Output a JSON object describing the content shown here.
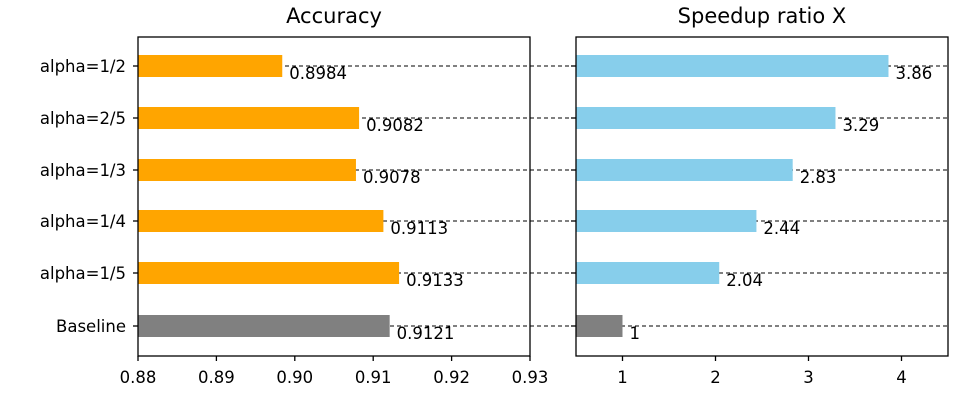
{
  "chart_data": [
    {
      "type": "bar",
      "orientation": "horizontal",
      "title": "Accuracy",
      "categories": [
        "alpha=1/2",
        "alpha=2/5",
        "alpha=1/3",
        "alpha=1/4",
        "alpha=1/5",
        "Baseline"
      ],
      "values": [
        0.8984,
        0.9082,
        0.9078,
        0.9113,
        0.9133,
        0.9121
      ],
      "value_labels": [
        "0.8984",
        "0.9082",
        "0.9078",
        "0.9113",
        "0.9133",
        "0.9121"
      ],
      "xlim": [
        0.88,
        0.93
      ],
      "xticks": [
        "0.88",
        "0.89",
        "0.90",
        "0.91",
        "0.92",
        "0.93"
      ],
      "colors": [
        "#ffa500",
        "#ffa500",
        "#ffa500",
        "#ffa500",
        "#ffa500",
        "#808080"
      ]
    },
    {
      "type": "bar",
      "orientation": "horizontal",
      "title": "Speedup ratio X",
      "categories": [
        "alpha=1/2",
        "alpha=2/5",
        "alpha=1/3",
        "alpha=1/4",
        "alpha=1/5",
        "Baseline"
      ],
      "values": [
        3.86,
        3.29,
        2.83,
        2.44,
        2.04,
        1
      ],
      "value_labels": [
        "3.86",
        "3.29",
        "2.83",
        "2.44",
        "2.04",
        "1"
      ],
      "xlim": [
        0.5,
        4.5
      ],
      "xticks": [
        "1",
        "2",
        "3",
        "4"
      ],
      "colors": [
        "#87ceeb",
        "#87ceeb",
        "#87ceeb",
        "#87ceeb",
        "#87ceeb",
        "#808080"
      ]
    }
  ]
}
